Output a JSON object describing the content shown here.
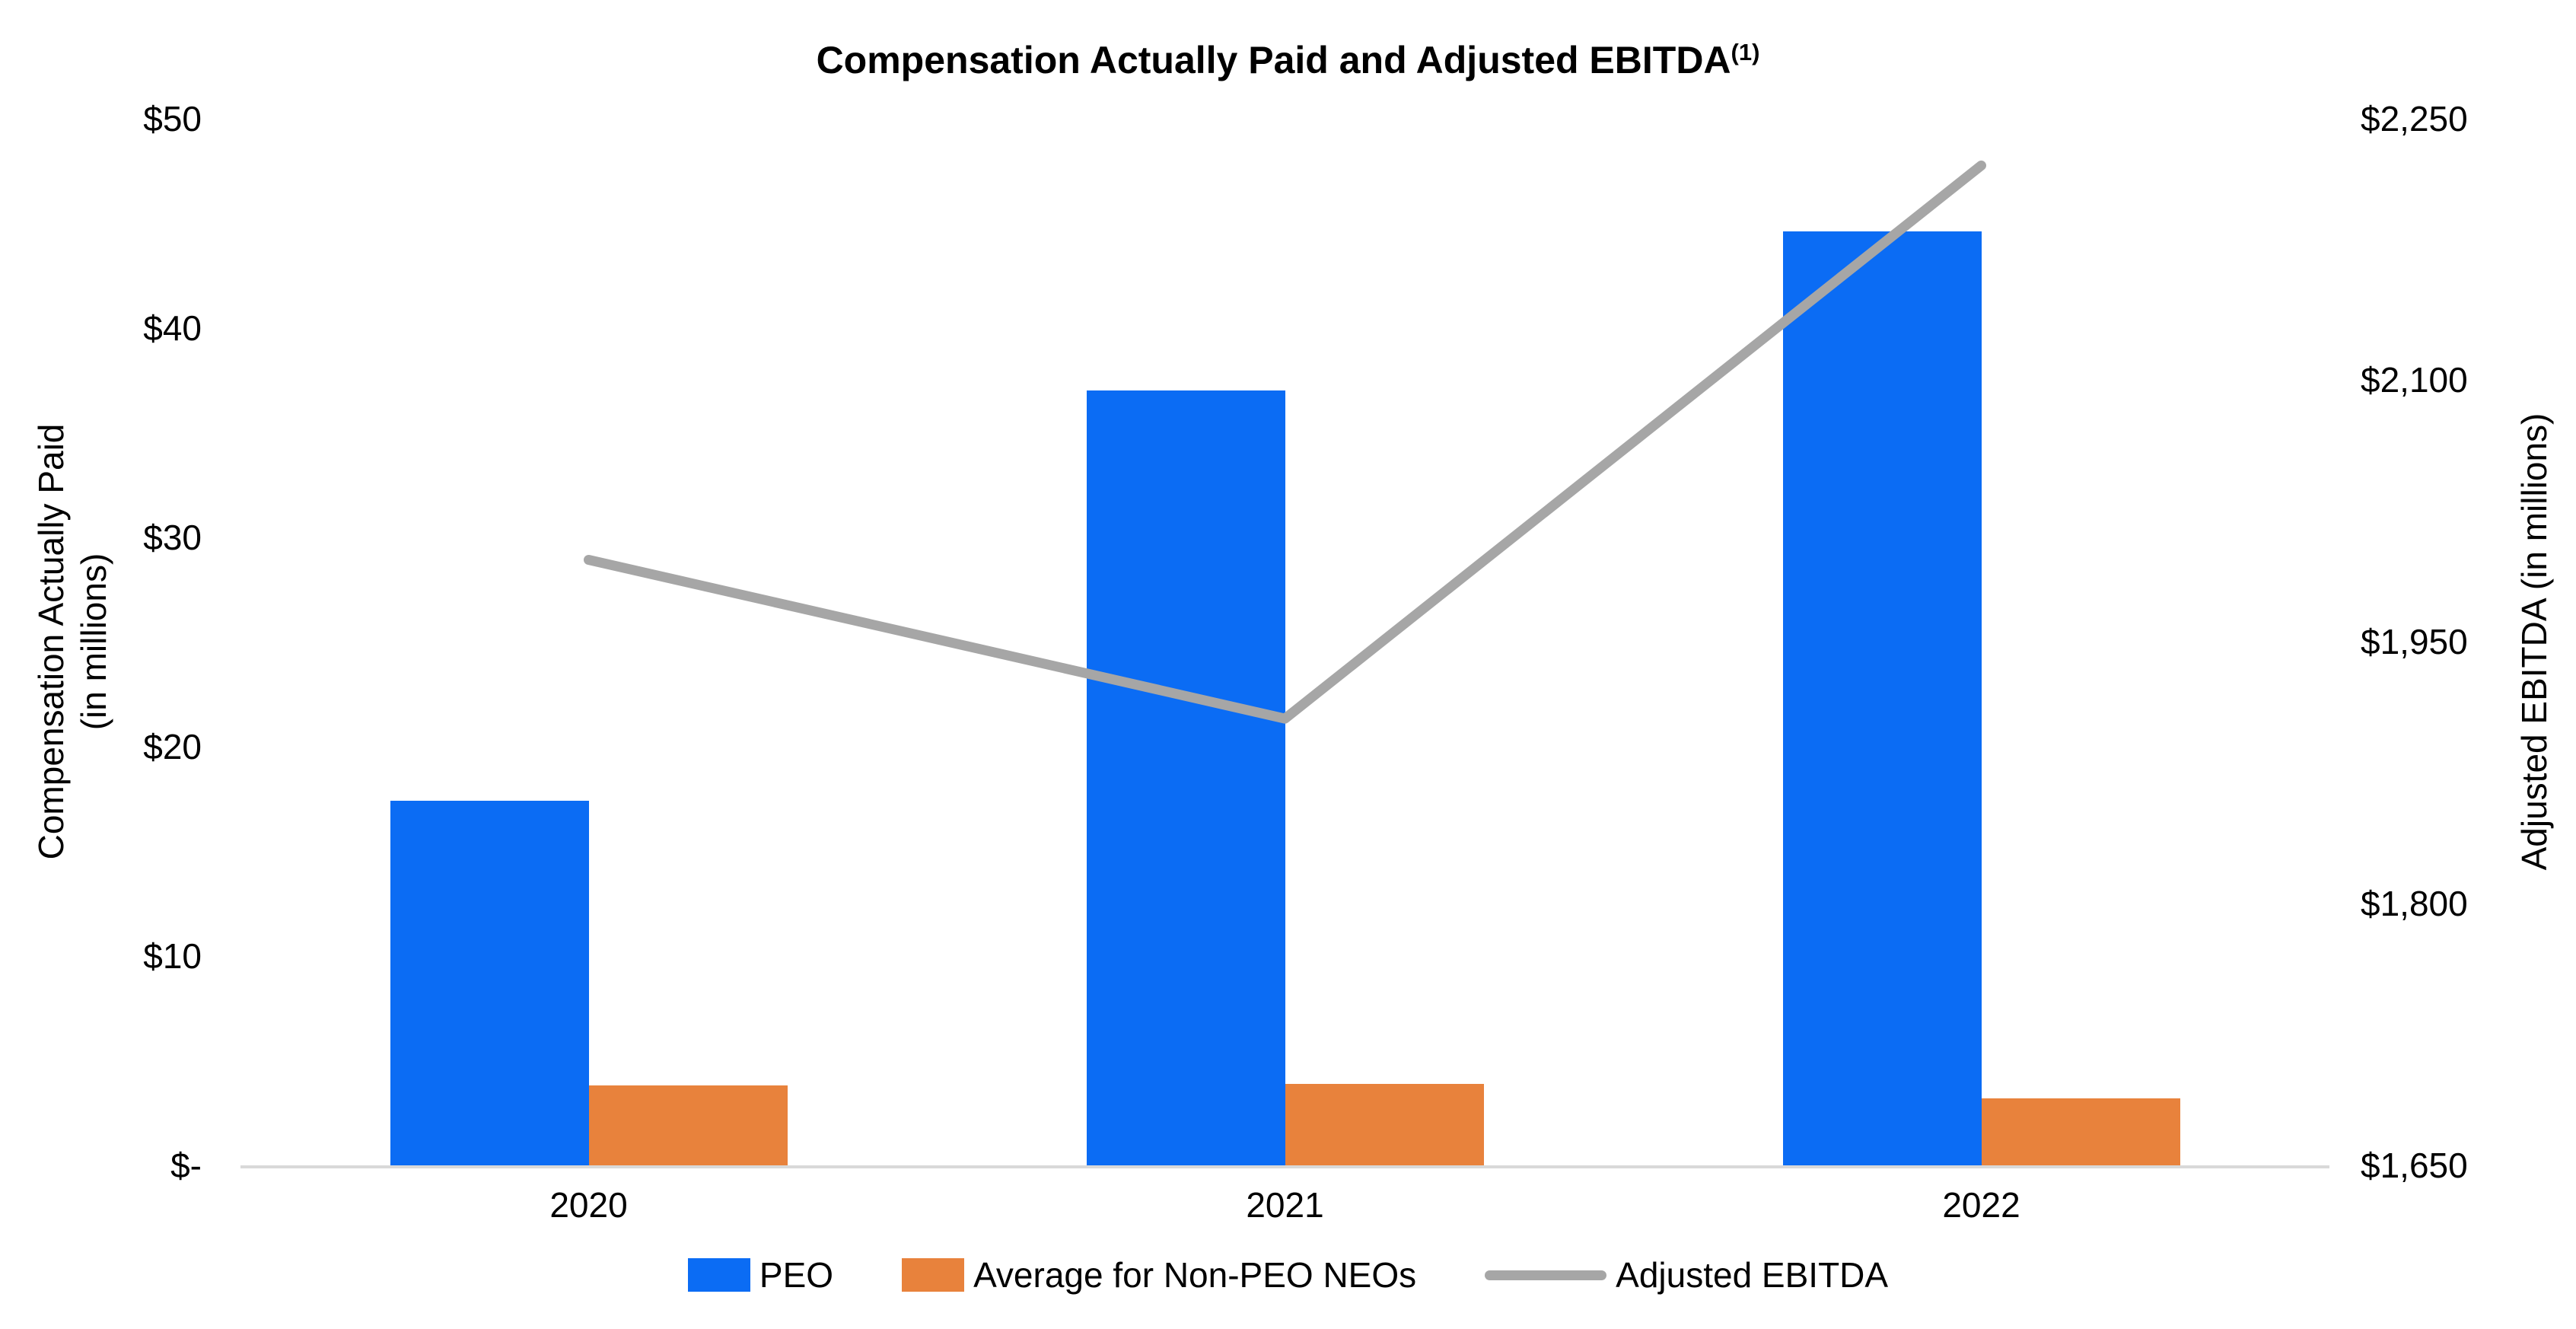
{
  "title": {
    "text": "Compensation Actually Paid and Adjusted EBITDA",
    "superscript": "(1)"
  },
  "left_axis_title": {
    "line1": "Compensation Actually Paid",
    "line2": "(in millions)"
  },
  "right_axis_title": "Adjusted EBITDA (in millions)",
  "chart_data": {
    "type": "combo",
    "title": "Compensation Actually Paid and Adjusted EBITDA(1)",
    "categories": [
      "2020",
      "2021",
      "2022"
    ],
    "series": [
      {
        "name": "PEO",
        "type": "bar",
        "axis": "left",
        "color": "#0B6CF4",
        "values": [
          17.4,
          37.0,
          44.6
        ]
      },
      {
        "name": "Average for Non-PEO NEOs",
        "type": "bar",
        "axis": "left",
        "color": "#E8823C",
        "values": [
          3.8,
          3.9,
          3.2
        ]
      },
      {
        "name": "Adjusted EBITDA",
        "type": "line",
        "axis": "right",
        "color": "#A6A6A6",
        "values": [
          1997,
          1906,
          2223
        ]
      }
    ],
    "left_axis": {
      "label": "Compensation Actually Paid (in millions)",
      "range": [
        0,
        50
      ],
      "ticks": [
        {
          "label": "$-",
          "value": 0
        },
        {
          "label": "$10",
          "value": 10
        },
        {
          "label": "$20",
          "value": 20
        },
        {
          "label": "$30",
          "value": 30
        },
        {
          "label": "$40",
          "value": 40
        },
        {
          "label": "$50",
          "value": 50
        }
      ]
    },
    "right_axis": {
      "label": "Adjusted EBITDA (in millions)",
      "range": [
        1650,
        2250
      ],
      "ticks": [
        {
          "label": "$1,650",
          "value": 1650
        },
        {
          "label": "$1,800",
          "value": 1800
        },
        {
          "label": "$1,950",
          "value": 1950
        },
        {
          "label": "$2,100",
          "value": 2100
        },
        {
          "label": "$2,250",
          "value": 2250
        }
      ]
    },
    "grid": false,
    "legend_position": "bottom",
    "axis_line_color": "#D9D9D9"
  }
}
